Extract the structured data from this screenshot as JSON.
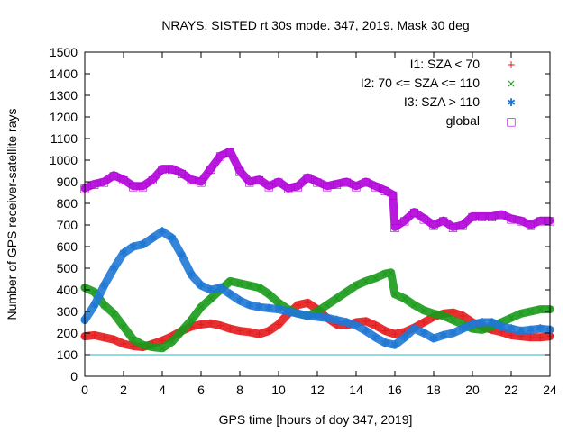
{
  "chart_data": {
    "type": "scatter",
    "title": "NRAYS. SISTED rt 30s mode. 347, 2019. Mask 30 deg",
    "xlabel": "GPS time [hours of doy 347, 2019]",
    "ylabel": "Number of GPS receiver-satellite rays",
    "xlim": [
      0,
      24
    ],
    "ylim": [
      0,
      1500
    ],
    "xticks": [
      "0",
      "2",
      "4",
      "6",
      "8",
      "10",
      "12",
      "14",
      "16",
      "18",
      "20",
      "22",
      "24"
    ],
    "yticks": [
      "0",
      "100",
      "200",
      "300",
      "400",
      "500",
      "600",
      "700",
      "800",
      "900",
      "1000",
      "1100",
      "1200",
      "1300",
      "1400",
      "1500"
    ],
    "reference_line": {
      "y": 100,
      "color": "#00c8c8"
    },
    "legend_position": "top-right",
    "series": [
      {
        "name": "I1: SZA < 70",
        "color": "#e41a1c",
        "marker": "+",
        "x": [
          0,
          0.5,
          1,
          1.5,
          2,
          2.5,
          3,
          3.5,
          4,
          4.5,
          5,
          5.5,
          6,
          6.5,
          7,
          7.5,
          8,
          8.5,
          9,
          9.5,
          10,
          10.5,
          11,
          11.5,
          12,
          12.5,
          13,
          13.5,
          14,
          14.5,
          15,
          15.5,
          16,
          16.5,
          17,
          17.5,
          18,
          18.5,
          19,
          19.5,
          20,
          20.5,
          21,
          21.5,
          22,
          22.5,
          23,
          23.5,
          24
        ],
        "values": [
          185,
          190,
          180,
          170,
          150,
          140,
          135,
          150,
          165,
          185,
          210,
          230,
          240,
          245,
          235,
          220,
          210,
          205,
          195,
          210,
          240,
          290,
          330,
          340,
          310,
          270,
          240,
          235,
          250,
          255,
          235,
          210,
          195,
          205,
          225,
          250,
          275,
          290,
          295,
          280,
          250,
          230,
          215,
          205,
          190,
          185,
          180,
          180,
          185
        ]
      },
      {
        "name": "I2: 70 <= SZA <= 110",
        "color": "#1a9a1a",
        "marker": "×",
        "x": [
          0,
          0.5,
          1,
          1.5,
          2,
          2.5,
          3,
          3.5,
          4,
          4.5,
          5,
          5.5,
          6,
          6.5,
          7,
          7.5,
          8,
          8.5,
          9,
          9.5,
          10,
          10.5,
          11,
          11.5,
          12,
          12.5,
          13,
          13.5,
          14,
          14.5,
          15,
          15.5,
          15.8,
          16,
          16.5,
          17,
          17.5,
          18,
          18.5,
          19,
          19.5,
          20,
          20.5,
          21,
          21.5,
          22,
          22.5,
          23,
          23.5,
          24
        ],
        "values": [
          410,
          390,
          330,
          290,
          230,
          170,
          145,
          135,
          130,
          160,
          210,
          260,
          320,
          360,
          400,
          440,
          430,
          420,
          410,
          380,
          340,
          310,
          290,
          280,
          300,
          330,
          360,
          390,
          420,
          440,
          455,
          475,
          480,
          380,
          360,
          330,
          305,
          290,
          280,
          260,
          240,
          220,
          215,
          230,
          250,
          270,
          290,
          300,
          310,
          310
        ]
      },
      {
        "name": "I3: SZA > 110",
        "color": "#1f78d4",
        "marker": "✱",
        "x": [
          0,
          0.5,
          1,
          1.5,
          2,
          2.5,
          3,
          3.5,
          4,
          4.5,
          5,
          5.5,
          6,
          6.5,
          7,
          7.5,
          8,
          8.5,
          9,
          9.5,
          10,
          10.5,
          11,
          11.5,
          12,
          12.5,
          13,
          13.5,
          14,
          14.5,
          15,
          15.5,
          16,
          16.5,
          17,
          17.5,
          18,
          18.5,
          19,
          19.5,
          20,
          20.5,
          21,
          21.5,
          22,
          22.5,
          23,
          23.5,
          24
        ],
        "values": [
          260,
          330,
          420,
          500,
          570,
          600,
          610,
          640,
          670,
          640,
          560,
          470,
          420,
          400,
          410,
          380,
          350,
          330,
          320,
          315,
          310,
          300,
          290,
          280,
          275,
          270,
          260,
          250,
          235,
          210,
          180,
          155,
          145,
          180,
          220,
          200,
          175,
          190,
          200,
          220,
          240,
          250,
          250,
          230,
          220,
          210,
          215,
          220,
          215
        ]
      },
      {
        "name": "global",
        "color": "#b000d8",
        "marker": "□",
        "x": [
          0,
          0.5,
          1,
          1.5,
          2,
          2.5,
          3,
          3.5,
          4,
          4.5,
          5,
          5.5,
          6,
          6.5,
          7,
          7.5,
          8,
          8.5,
          9,
          9.5,
          10,
          10.5,
          11,
          11.5,
          12,
          12.5,
          13,
          13.5,
          14,
          14.5,
          15,
          15.5,
          15.9,
          16,
          16.5,
          17,
          17.5,
          18,
          18.5,
          19,
          19.5,
          20,
          20.5,
          21,
          21.5,
          22,
          22.5,
          23,
          23.5,
          24
        ],
        "values": [
          870,
          890,
          900,
          930,
          910,
          880,
          880,
          910,
          960,
          960,
          940,
          910,
          900,
          960,
          1020,
          1040,
          950,
          900,
          910,
          880,
          900,
          870,
          880,
          920,
          900,
          880,
          890,
          900,
          880,
          900,
          880,
          860,
          840,
          690,
          720,
          760,
          730,
          700,
          720,
          690,
          700,
          740,
          740,
          740,
          750,
          730,
          720,
          700,
          720,
          720
        ]
      }
    ]
  }
}
